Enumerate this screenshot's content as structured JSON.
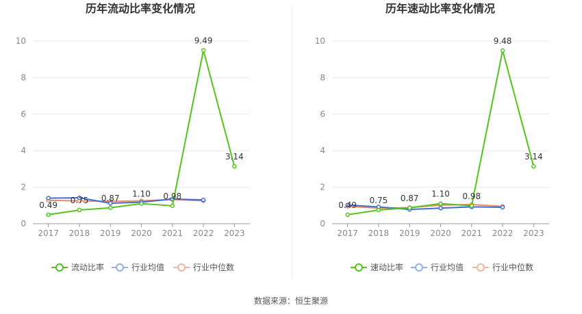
{
  "colors": {
    "series_1": "#52c41a",
    "series_2": "#3a6fd8",
    "series_3": "#f08a5d",
    "legend_1": "#52c41a",
    "legend_2": "#8fb0ef",
    "legend_3": "#f5b49a",
    "grid": "#e6e9f0",
    "axis": "#999999",
    "tick_text": "#888888",
    "title": "#333333"
  },
  "source_text": "数据来源：恒生聚源",
  "chart_data": [
    {
      "type": "line",
      "title": "历年流动比率变化情况",
      "categories": [
        "2017",
        "2018",
        "2019",
        "2020",
        "2021",
        "2022",
        "2023"
      ],
      "yticks": [
        "0",
        "2",
        "4",
        "6",
        "8",
        "10"
      ],
      "ylim": [
        0,
        10
      ],
      "grid": true,
      "legend_position": "bottom",
      "series": [
        {
          "name": "流动比率",
          "values": [
            0.49,
            0.75,
            0.87,
            1.1,
            0.98,
            9.49,
            3.14
          ],
          "labels": [
            "0.49",
            "0.75",
            "0.87",
            "1.10",
            "0.98",
            "9.49",
            "3.14"
          ]
        },
        {
          "name": "行业均值",
          "values": [
            1.4,
            1.42,
            1.12,
            1.18,
            1.35,
            1.3,
            null
          ]
        },
        {
          "name": "行业中位数",
          "values": [
            1.28,
            1.25,
            1.22,
            1.25,
            1.33,
            1.25,
            null
          ]
        }
      ]
    },
    {
      "type": "line",
      "title": "历年速动比率变化情况",
      "categories": [
        "2017",
        "2018",
        "2019",
        "2020",
        "2021",
        "2022",
        "2023"
      ],
      "yticks": [
        "0",
        "2",
        "4",
        "6",
        "8",
        "10"
      ],
      "ylim": [
        0,
        10
      ],
      "grid": true,
      "legend_position": "bottom",
      "series": [
        {
          "name": "速动比率",
          "values": [
            0.49,
            0.75,
            0.87,
            1.1,
            0.98,
            9.48,
            3.14
          ],
          "labels": [
            "0.49",
            "0.75",
            "0.87",
            "1.10",
            "0.98",
            "9.48",
            "3.14"
          ]
        },
        {
          "name": "行业均值",
          "values": [
            1.02,
            0.92,
            0.78,
            0.85,
            0.92,
            0.9,
            null
          ]
        },
        {
          "name": "行业中位数",
          "values": [
            0.95,
            0.85,
            0.88,
            1.02,
            1.05,
            0.95,
            null
          ]
        }
      ]
    }
  ]
}
